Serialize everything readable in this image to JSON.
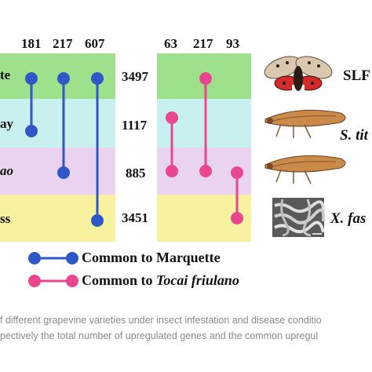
{
  "left_panel": {
    "column_totals": [
      "181",
      "217",
      "607"
    ],
    "row_labels": [
      "te",
      "ay",
      "ao",
      "ss"
    ],
    "row_totals": [
      "3497",
      "1117",
      "885",
      "3451"
    ],
    "band_colors": [
      "#9ee08c",
      "#c8f0ee",
      "#e9d3ef",
      "#f8f2a0"
    ],
    "connector_color": "#2f57c7"
  },
  "right_panel": {
    "column_totals": [
      "63",
      "217",
      "93"
    ],
    "band_colors": [
      "#9ee08c",
      "#c8f0ee",
      "#e9d3ef",
      "#f8f2a0"
    ],
    "connector_color": "#e8478f"
  },
  "species": {
    "row1": "SLF",
    "row2_prefix": "S. tit",
    "row3": "",
    "row4_prefix": "X. fas"
  },
  "legend": {
    "item1": "Common to Marquette",
    "item2_prefix": "Common to ",
    "item2_italic": "Tocai friulano"
  },
  "caption": {
    "line1": "f different grapevine varieties under insect infestation and disease conditio",
    "line2": "pectively the total number of upregulated genes and the common upregul"
  }
}
